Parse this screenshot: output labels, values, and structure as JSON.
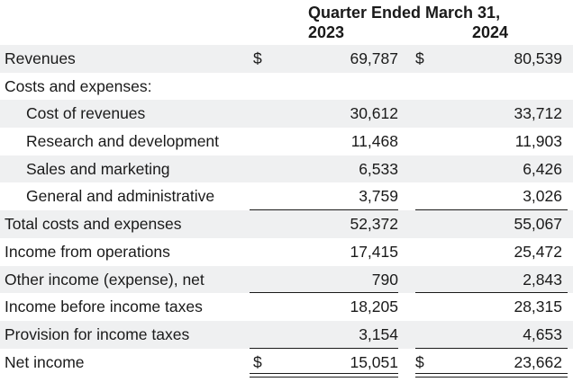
{
  "header": {
    "title": "Quarter Ended March 31,",
    "years": [
      "2023",
      "2024"
    ]
  },
  "rows": [
    {
      "label": "Revenues",
      "currency": "$",
      "v2023": "69,787",
      "v2024": "80,539"
    },
    {
      "label": "Costs and expenses:",
      "currency": "",
      "v2023": "",
      "v2024": ""
    },
    {
      "label": "Cost of revenues",
      "currency": "",
      "v2023": "30,612",
      "v2024": "33,712"
    },
    {
      "label": "Research and development",
      "currency": "",
      "v2023": "11,468",
      "v2024": "11,903"
    },
    {
      "label": "Sales and marketing",
      "currency": "",
      "v2023": "6,533",
      "v2024": "6,426"
    },
    {
      "label": "General and administrative",
      "currency": "",
      "v2023": "3,759",
      "v2024": "3,026"
    },
    {
      "label": "Total costs and expenses",
      "currency": "",
      "v2023": "52,372",
      "v2024": "55,067"
    },
    {
      "label": "Income from operations",
      "currency": "",
      "v2023": "17,415",
      "v2024": "25,472"
    },
    {
      "label": "Other income (expense), net",
      "currency": "",
      "v2023": "790",
      "v2024": "2,843"
    },
    {
      "label": "Income before income taxes",
      "currency": "",
      "v2023": "18,205",
      "v2024": "28,315"
    },
    {
      "label": "Provision for income taxes",
      "currency": "",
      "v2023": "3,154",
      "v2024": "4,653"
    },
    {
      "label": "Net income",
      "currency": "$",
      "v2023": "15,051",
      "v2024": "23,662"
    }
  ]
}
